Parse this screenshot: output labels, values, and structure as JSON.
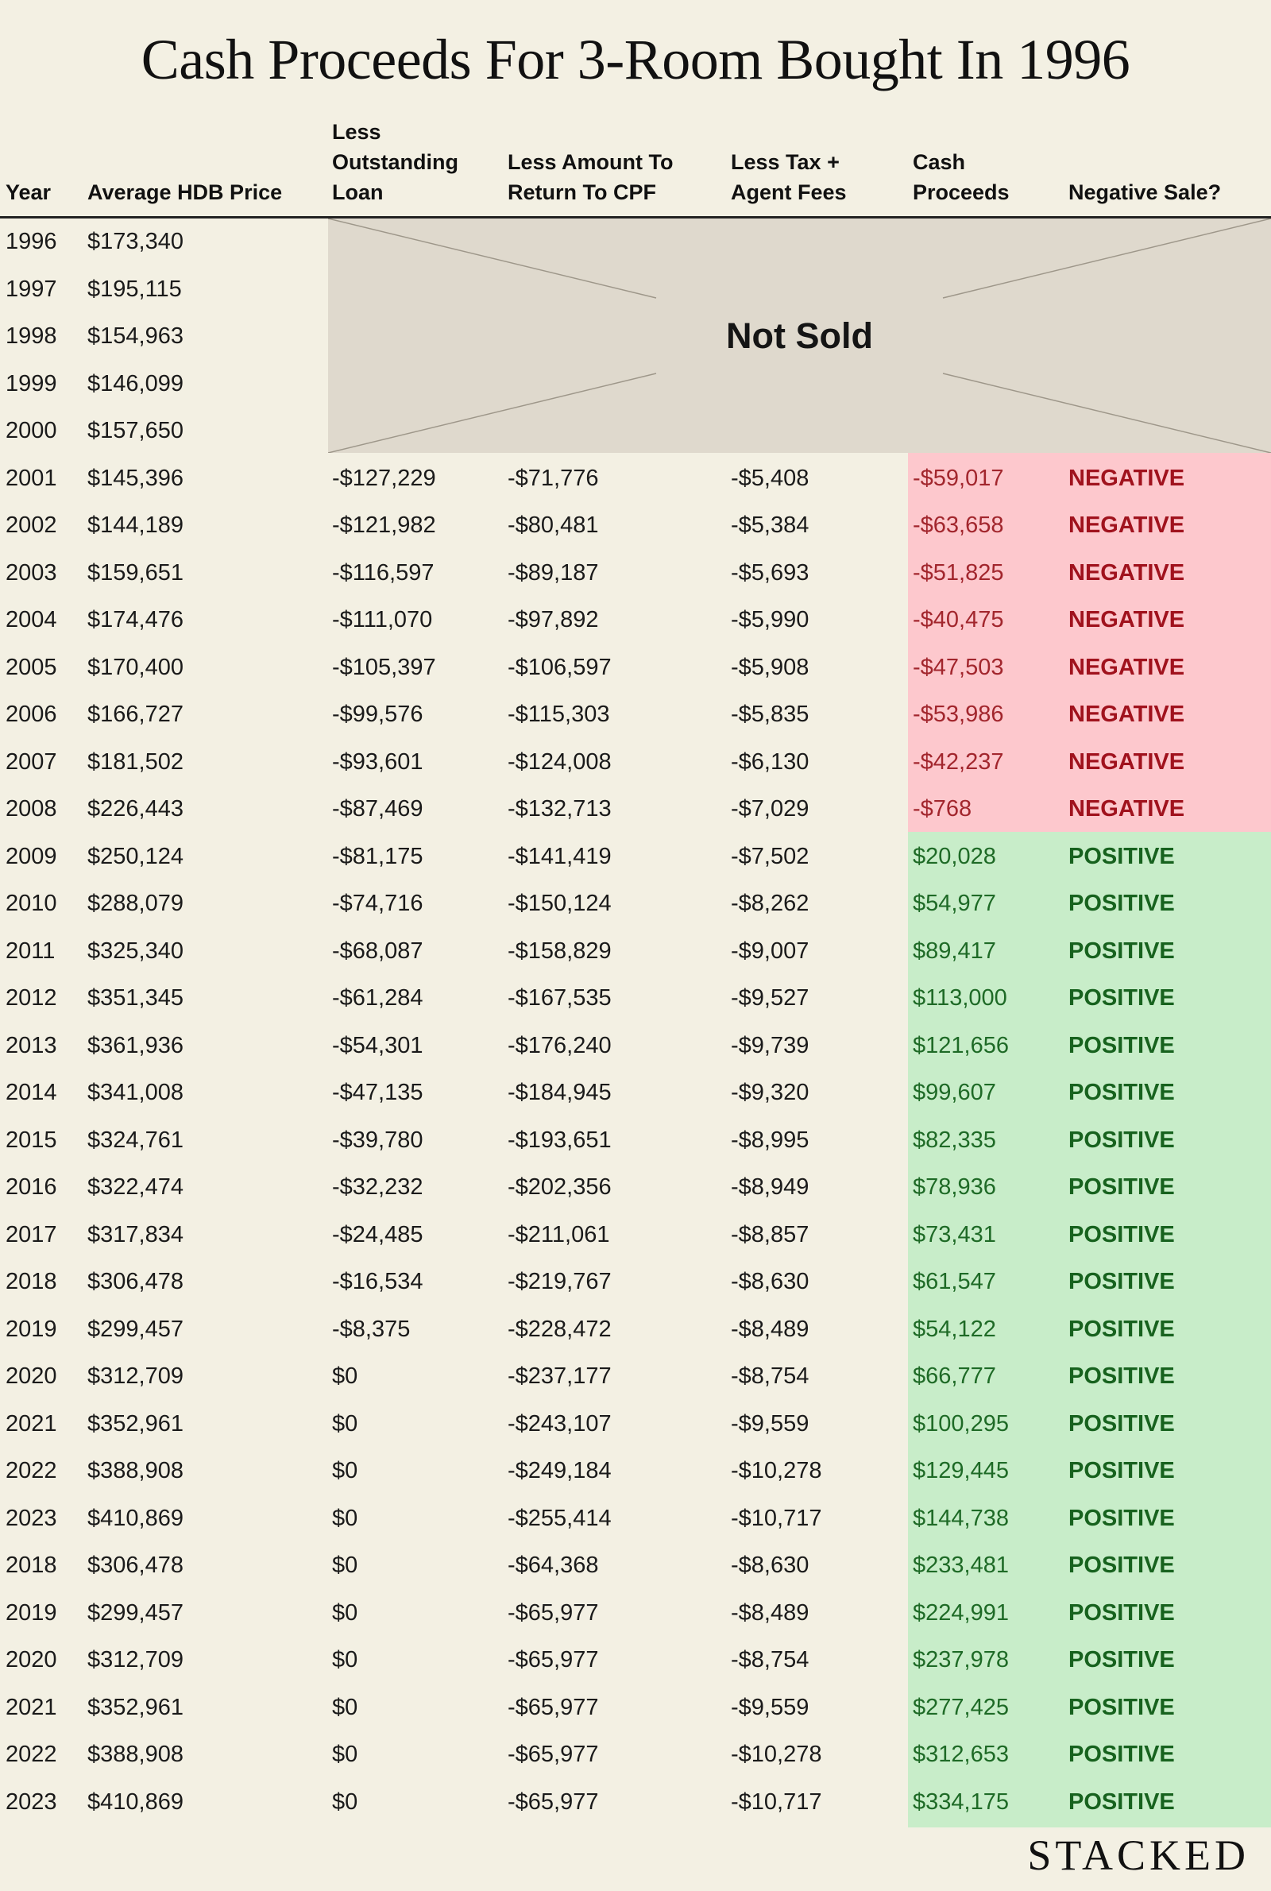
{
  "chart_data": {
    "type": "table",
    "title": "Cash Proceeds For 3-Room Bought In 1996",
    "columns": [
      "Year",
      "Average HDB Price",
      "Less Outstanding Loan",
      "Less Amount To Return To CPF",
      "Less Tax + Agent Fees",
      "Cash Proceeds",
      "Negative Sale?"
    ],
    "not_sold_label": "Not Sold",
    "status_colors": {
      "negative_fill": "#fdc8cd",
      "positive_fill": "#c8edc9",
      "negative_text": "#a0121d",
      "positive_text": "#17621e"
    },
    "rows": [
      {
        "year": "1996",
        "price": "$173,340",
        "loan": "",
        "cpf": "",
        "fees": "",
        "cash": "",
        "status": ""
      },
      {
        "year": "1997",
        "price": "$195,115",
        "loan": "",
        "cpf": "",
        "fees": "",
        "cash": "",
        "status": ""
      },
      {
        "year": "1998",
        "price": "$154,963",
        "loan": "",
        "cpf": "",
        "fees": "",
        "cash": "",
        "status": ""
      },
      {
        "year": "1999",
        "price": "$146,099",
        "loan": "",
        "cpf": "",
        "fees": "",
        "cash": "",
        "status": ""
      },
      {
        "year": "2000",
        "price": "$157,650",
        "loan": "",
        "cpf": "",
        "fees": "",
        "cash": "",
        "status": ""
      },
      {
        "year": "2001",
        "price": "$145,396",
        "loan": "-$127,229",
        "cpf": "-$71,776",
        "fees": "-$5,408",
        "cash": "-$59,017",
        "status": "NEGATIVE"
      },
      {
        "year": "2002",
        "price": "$144,189",
        "loan": "-$121,982",
        "cpf": "-$80,481",
        "fees": "-$5,384",
        "cash": "-$63,658",
        "status": "NEGATIVE"
      },
      {
        "year": "2003",
        "price": "$159,651",
        "loan": "-$116,597",
        "cpf": "-$89,187",
        "fees": "-$5,693",
        "cash": "-$51,825",
        "status": "NEGATIVE"
      },
      {
        "year": "2004",
        "price": "$174,476",
        "loan": "-$111,070",
        "cpf": "-$97,892",
        "fees": "-$5,990",
        "cash": "-$40,475",
        "status": "NEGATIVE"
      },
      {
        "year": "2005",
        "price": "$170,400",
        "loan": "-$105,397",
        "cpf": "-$106,597",
        "fees": "-$5,908",
        "cash": "-$47,503",
        "status": "NEGATIVE"
      },
      {
        "year": "2006",
        "price": "$166,727",
        "loan": "-$99,576",
        "cpf": "-$115,303",
        "fees": "-$5,835",
        "cash": "-$53,986",
        "status": "NEGATIVE"
      },
      {
        "year": "2007",
        "price": "$181,502",
        "loan": "-$93,601",
        "cpf": "-$124,008",
        "fees": "-$6,130",
        "cash": "-$42,237",
        "status": "NEGATIVE"
      },
      {
        "year": "2008",
        "price": "$226,443",
        "loan": "-$87,469",
        "cpf": "-$132,713",
        "fees": "-$7,029",
        "cash": "-$768",
        "status": "NEGATIVE"
      },
      {
        "year": "2009",
        "price": "$250,124",
        "loan": "-$81,175",
        "cpf": "-$141,419",
        "fees": "-$7,502",
        "cash": "$20,028",
        "status": "POSITIVE"
      },
      {
        "year": "2010",
        "price": "$288,079",
        "loan": "-$74,716",
        "cpf": "-$150,124",
        "fees": "-$8,262",
        "cash": "$54,977",
        "status": "POSITIVE"
      },
      {
        "year": "2011",
        "price": "$325,340",
        "loan": "-$68,087",
        "cpf": "-$158,829",
        "fees": "-$9,007",
        "cash": "$89,417",
        "status": "POSITIVE"
      },
      {
        "year": "2012",
        "price": "$351,345",
        "loan": "-$61,284",
        "cpf": "-$167,535",
        "fees": "-$9,527",
        "cash": "$113,000",
        "status": "POSITIVE"
      },
      {
        "year": "2013",
        "price": "$361,936",
        "loan": "-$54,301",
        "cpf": "-$176,240",
        "fees": "-$9,739",
        "cash": "$121,656",
        "status": "POSITIVE"
      },
      {
        "year": "2014",
        "price": "$341,008",
        "loan": "-$47,135",
        "cpf": "-$184,945",
        "fees": "-$9,320",
        "cash": "$99,607",
        "status": "POSITIVE"
      },
      {
        "year": "2015",
        "price": "$324,761",
        "loan": "-$39,780",
        "cpf": "-$193,651",
        "fees": "-$8,995",
        "cash": "$82,335",
        "status": "POSITIVE"
      },
      {
        "year": "2016",
        "price": "$322,474",
        "loan": "-$32,232",
        "cpf": "-$202,356",
        "fees": "-$8,949",
        "cash": "$78,936",
        "status": "POSITIVE"
      },
      {
        "year": "2017",
        "price": "$317,834",
        "loan": "-$24,485",
        "cpf": "-$211,061",
        "fees": "-$8,857",
        "cash": "$73,431",
        "status": "POSITIVE"
      },
      {
        "year": "2018",
        "price": "$306,478",
        "loan": "-$16,534",
        "cpf": "-$219,767",
        "fees": "-$8,630",
        "cash": "$61,547",
        "status": "POSITIVE"
      },
      {
        "year": "2019",
        "price": "$299,457",
        "loan": "-$8,375",
        "cpf": "-$228,472",
        "fees": "-$8,489",
        "cash": "$54,122",
        "status": "POSITIVE"
      },
      {
        "year": "2020",
        "price": "$312,709",
        "loan": "$0",
        "cpf": "-$237,177",
        "fees": "-$8,754",
        "cash": "$66,777",
        "status": "POSITIVE"
      },
      {
        "year": "2021",
        "price": "$352,961",
        "loan": "$0",
        "cpf": "-$243,107",
        "fees": "-$9,559",
        "cash": "$100,295",
        "status": "POSITIVE"
      },
      {
        "year": "2022",
        "price": "$388,908",
        "loan": "$0",
        "cpf": "-$249,184",
        "fees": "-$10,278",
        "cash": "$129,445",
        "status": "POSITIVE"
      },
      {
        "year": "2023",
        "price": "$410,869",
        "loan": "$0",
        "cpf": "-$255,414",
        "fees": "-$10,717",
        "cash": "$144,738",
        "status": "POSITIVE"
      },
      {
        "year": "2018",
        "price": "$306,478",
        "loan": "$0",
        "cpf": "-$64,368",
        "fees": "-$8,630",
        "cash": "$233,481",
        "status": "POSITIVE"
      },
      {
        "year": "2019",
        "price": "$299,457",
        "loan": "$0",
        "cpf": "-$65,977",
        "fees": "-$8,489",
        "cash": "$224,991",
        "status": "POSITIVE"
      },
      {
        "year": "2020",
        "price": "$312,709",
        "loan": "$0",
        "cpf": "-$65,977",
        "fees": "-$8,754",
        "cash": "$237,978",
        "status": "POSITIVE"
      },
      {
        "year": "2021",
        "price": "$352,961",
        "loan": "$0",
        "cpf": "-$65,977",
        "fees": "-$9,559",
        "cash": "$277,425",
        "status": "POSITIVE"
      },
      {
        "year": "2022",
        "price": "$388,908",
        "loan": "$0",
        "cpf": "-$65,977",
        "fees": "-$10,278",
        "cash": "$312,653",
        "status": "POSITIVE"
      },
      {
        "year": "2023",
        "price": "$410,869",
        "loan": "$0",
        "cpf": "-$65,977",
        "fees": "-$10,717",
        "cash": "$334,175",
        "status": "POSITIVE"
      }
    ]
  },
  "headers": {
    "year": "Year",
    "price": "Average HDB Price",
    "loan": [
      "Less",
      "Outstanding",
      "Loan"
    ],
    "cpf": [
      "Less Amount To",
      "Return To CPF"
    ],
    "fees": [
      "Less Tax +",
      "Agent Fees"
    ],
    "cash": [
      "Cash",
      "Proceeds"
    ],
    "status": "Negative Sale?"
  },
  "brand": "STACKED"
}
